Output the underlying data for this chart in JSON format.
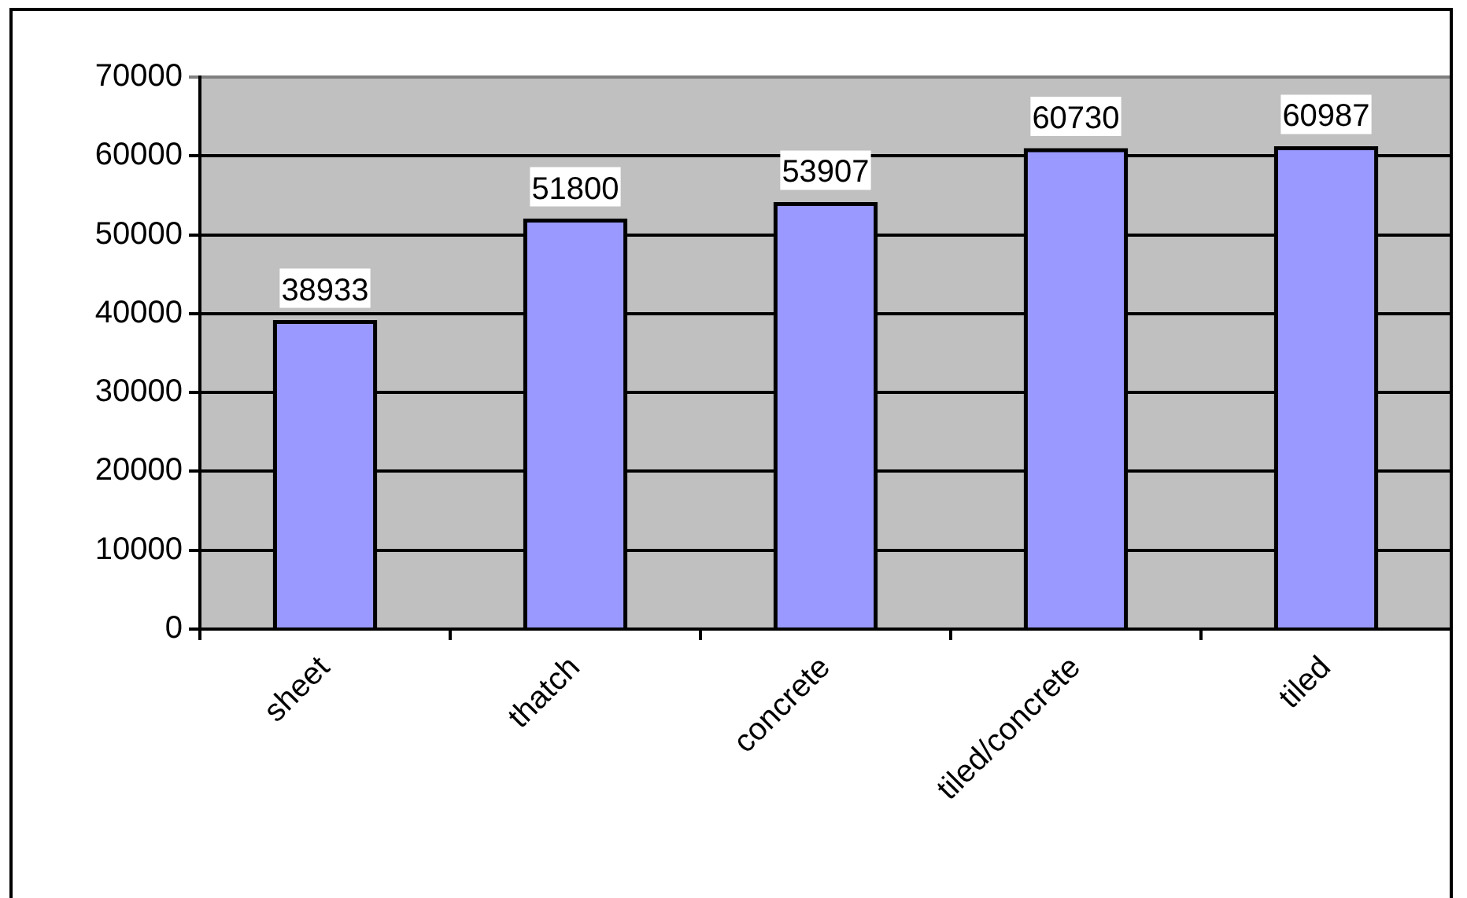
{
  "chart_data": {
    "type": "bar",
    "categories": [
      "sheet",
      "thatch",
      "concrete",
      "tiled/concrete",
      "tiled"
    ],
    "values": [
      38933,
      51800,
      53907,
      60730,
      60987
    ],
    "color": "#9999ff",
    "ylim": [
      0,
      70000
    ],
    "yticks": [
      0,
      10000,
      20000,
      30000,
      40000,
      50000,
      60000,
      70000
    ],
    "grid": "y",
    "data_labels": true
  }
}
